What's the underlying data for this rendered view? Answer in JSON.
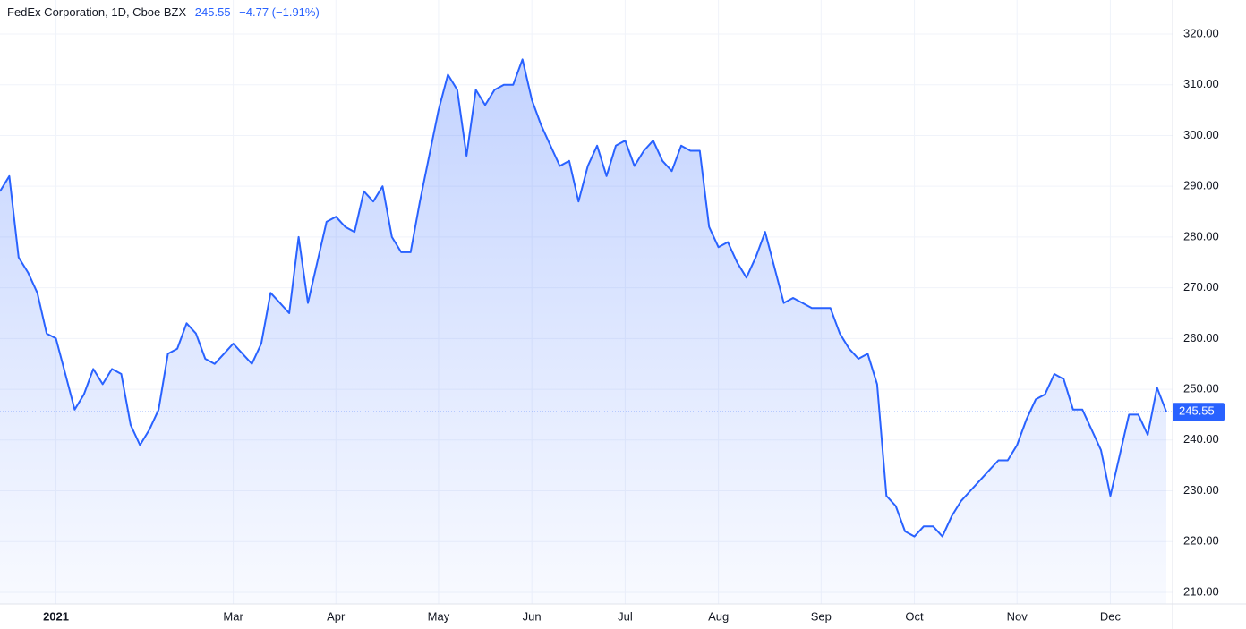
{
  "chart_data": {
    "type": "line",
    "header": {
      "symbol": "FedEx Corporation, 1D, Cboe BZX",
      "change": "−4.77 (−1.91%)"
    },
    "color": "#2962ff",
    "categories": [
      null,
      null,
      null,
      null,
      null,
      null,
      "2021",
      null,
      null,
      null,
      null,
      null,
      null,
      null,
      null,
      null,
      null,
      null,
      null,
      null,
      null,
      null,
      null,
      null,
      null,
      "Mar",
      null,
      null,
      null,
      null,
      null,
      null,
      null,
      null,
      null,
      null,
      "Apr",
      null,
      null,
      null,
      null,
      null,
      null,
      null,
      null,
      null,
      null,
      "May",
      null,
      null,
      null,
      null,
      null,
      null,
      null,
      null,
      null,
      "Jun",
      null,
      null,
      null,
      null,
      null,
      null,
      null,
      null,
      null,
      "Jul",
      null,
      null,
      null,
      null,
      null,
      null,
      null,
      null,
      null,
      "Aug",
      null,
      null,
      null,
      null,
      null,
      null,
      null,
      null,
      null,
      null,
      "Sep",
      null,
      null,
      null,
      null,
      null,
      null,
      null,
      null,
      null,
      "Oct",
      null,
      null,
      null,
      null,
      null,
      null,
      null,
      null,
      null,
      null,
      "Nov",
      null,
      null,
      null,
      null,
      null,
      null,
      null,
      null,
      null,
      "Dec",
      null,
      null,
      null,
      null,
      null,
      null
    ],
    "values": [
      289,
      292,
      276,
      273,
      269,
      261,
      260,
      253,
      246,
      249,
      254,
      251,
      254,
      253,
      243,
      239,
      242,
      246,
      257,
      258,
      263,
      261,
      256,
      255,
      257,
      259,
      257,
      255,
      259,
      269,
      267,
      265,
      280,
      267,
      275,
      283,
      284,
      282,
      281,
      289,
      287,
      290,
      280,
      277,
      277,
      287,
      296,
      305,
      312,
      309,
      296,
      309,
      306,
      309,
      310,
      310,
      315,
      307,
      302,
      298,
      294,
      295,
      287,
      294,
      298,
      292,
      298,
      299,
      294,
      297,
      299,
      295,
      293,
      298,
      297,
      297,
      282,
      278,
      279,
      275,
      272,
      276,
      281,
      274,
      267,
      268,
      267,
      266,
      266,
      266,
      261,
      258,
      256,
      257,
      251,
      229,
      227,
      222,
      221,
      223,
      223,
      221,
      225,
      228,
      230,
      232,
      234,
      236,
      236,
      239,
      244,
      248,
      249,
      253,
      252,
      246,
      246,
      242,
      238,
      229,
      237,
      245,
      245,
      241,
      250.32,
      245.55
    ],
    "ylim": [
      207.7,
      326.7
    ],
    "yticks": [
      {
        "value": 210,
        "label": "210.00"
      },
      {
        "value": 220,
        "label": "220.00"
      },
      {
        "value": 230,
        "label": "230.00"
      },
      {
        "value": 240,
        "label": "240.00"
      },
      {
        "value": 250,
        "label": "250.00"
      },
      {
        "value": 260,
        "label": "260.00"
      },
      {
        "value": 270,
        "label": "270.00"
      },
      {
        "value": 280,
        "label": "280.00"
      },
      {
        "value": 290,
        "label": "290.00"
      },
      {
        "value": 300,
        "label": "300.00"
      },
      {
        "value": 310,
        "label": "310.00"
      },
      {
        "value": 320,
        "label": "320.00"
      }
    ],
    "grid": true
  }
}
